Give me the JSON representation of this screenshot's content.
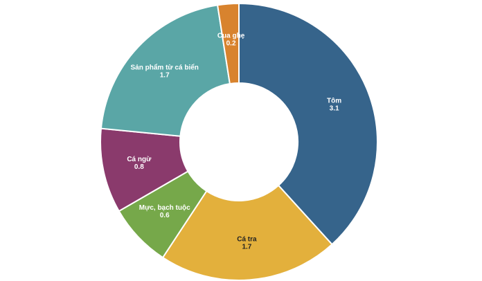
{
  "chart_data": {
    "type": "donut",
    "categories": [
      "Tôm",
      "Cá tra",
      "Mực, bạch tuộc",
      "Cá ngừ",
      "Sản phẩm từ cá biển",
      "Cua ghẹ"
    ],
    "values": [
      3.1,
      1.7,
      0.6,
      0.8,
      1.7,
      0.2
    ],
    "colors": [
      "#36648b",
      "#e3b03c",
      "#76a84a",
      "#8a3a6c",
      "#5aa6a6",
      "#d8832e"
    ]
  }
}
